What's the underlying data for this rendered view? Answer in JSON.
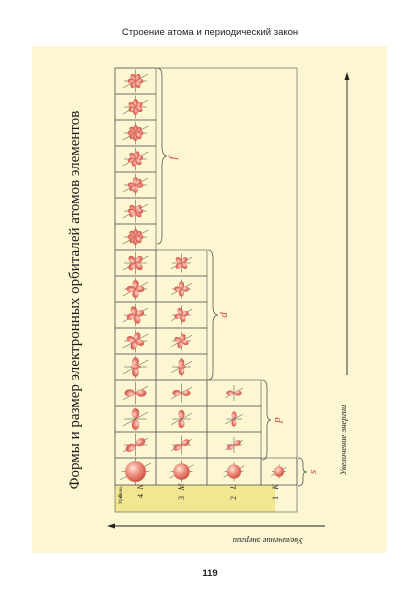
{
  "page": {
    "running_head": "Строение атома и периодический закон",
    "page_number": "119"
  },
  "figure": {
    "title": "Формы и размер электронных орбиталей атомов элементов",
    "header_level": "n",
    "header_sublevel": "Уровень",
    "levels": [
      {
        "n": "1",
        "letter": "K",
        "sublevels": [
          "s"
        ]
      },
      {
        "n": "2",
        "letter": "L",
        "sublevels": [
          "s",
          "p"
        ]
      },
      {
        "n": "3",
        "letter": "M",
        "sublevels": [
          "s",
          "p",
          "d"
        ]
      },
      {
        "n": "4",
        "letter": "N",
        "sublevels": [
          "s",
          "p",
          "d",
          "f"
        ]
      }
    ],
    "sublevel_braces": [
      {
        "label": "s",
        "orbitals": 1
      },
      {
        "label": "p",
        "orbitals": 3
      },
      {
        "label": "d",
        "orbitals": 5
      },
      {
        "label": "f",
        "orbitals": 7
      }
    ],
    "arrow_right_label": "Увеличение энергии",
    "arrow_left_label": "Увеличение энергии",
    "colors": {
      "orbital": "#e8685a",
      "orbital_light": "#f7c2b3",
      "axis": "#444444",
      "grid": "#555555",
      "level_band": "#f3e690",
      "panel": "#fdf6d2"
    }
  }
}
